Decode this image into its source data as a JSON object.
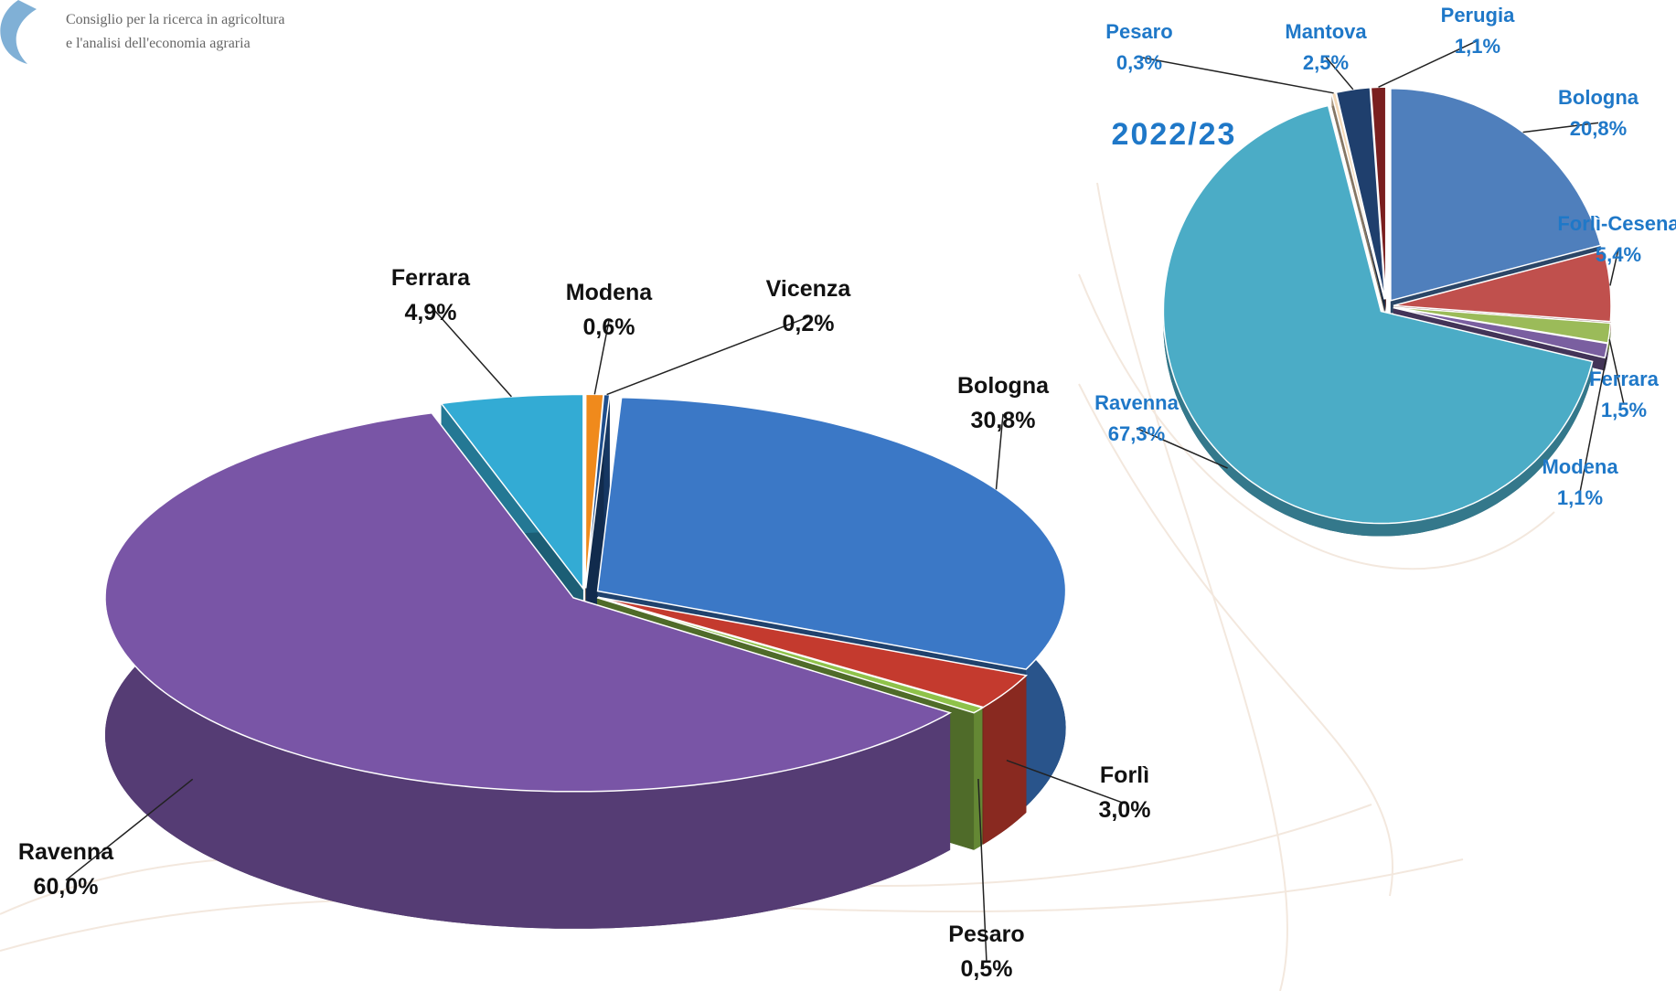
{
  "logo": {
    "lines": [
      "Consiglio per la ricerca in agricoltura",
      "e l'analisi dell'economia agraria"
    ]
  },
  "chart_data": [
    {
      "type": "pie3d",
      "categories": [
        "Ferrara",
        "Modena",
        "Vicenza",
        "Bologna",
        "Forlì",
        "Pesaro",
        "Ravenna"
      ],
      "values": [
        4.9,
        0.6,
        0.2,
        30.8,
        3.0,
        0.5,
        60.0
      ],
      "value_labels": [
        "4,9%",
        "0,6%",
        "0,2%",
        "30,8%",
        "3,0%",
        "0,5%",
        "60,0%"
      ],
      "colors": [
        "#33abd4",
        "#f08a1c",
        "#1f4e8c",
        "#3b78c6",
        "#c43a2e",
        "#8fc24a",
        "#7955a6"
      ]
    },
    {
      "type": "pie",
      "title": "2022/23",
      "categories": [
        "Bologna",
        "Forlì-Cesena",
        "Ferrara",
        "Modena",
        "Ravenna",
        "Pesaro",
        "Mantova",
        "Perugia"
      ],
      "values": [
        20.8,
        5.4,
        1.5,
        1.1,
        67.3,
        0.3,
        2.5,
        1.1
      ],
      "value_labels": [
        "20,8%",
        "5,4%",
        "1,5%",
        "1,1%",
        "67,3%",
        "0,3%",
        "2,5%",
        "1,1%"
      ],
      "colors": [
        "#4f7fbc",
        "#c0504d",
        "#9bbb59",
        "#7a5fa0",
        "#4bacc6",
        "#f3d9b8",
        "#1f3f6d",
        "#7a1f1f"
      ]
    }
  ]
}
